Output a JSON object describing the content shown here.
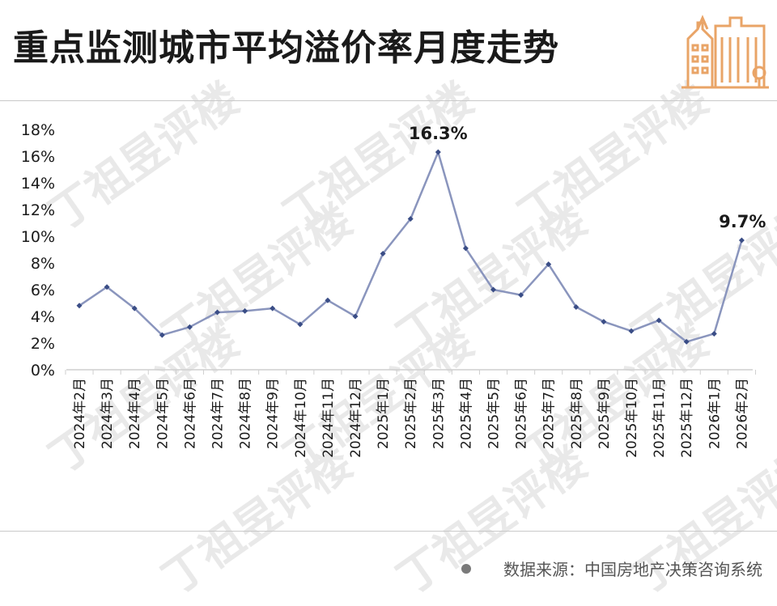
{
  "title": "重点监测城市平均溢价率月度走势",
  "source": "数据来源：中国房地产决策咨询系统",
  "watermark": "丁祖昱评楼",
  "colors": {
    "line": "#8a95bd",
    "marker": "#3a4d86",
    "text": "#1a1a1a",
    "logo": "#e9a467"
  },
  "chart_data": {
    "type": "line",
    "categories": [
      "2024年2月",
      "2024年3月",
      "2024年4月",
      "2024年5月",
      "2024年6月",
      "2024年7月",
      "2024年8月",
      "2024年9月",
      "2024年10月",
      "2024年11月",
      "2024年12月",
      "2025年1月",
      "2025年2月",
      "2025年3月",
      "2025年4月",
      "2025年5月",
      "2025年6月",
      "2025年7月",
      "2025年8月",
      "2025年9月",
      "2025年10月",
      "2025年11月",
      "2025年12月",
      "2026年1月",
      "2026年2月"
    ],
    "series": [
      {
        "values": [
          4.8,
          6.2,
          4.6,
          2.6,
          3.2,
          4.3,
          4.4,
          4.6,
          3.4,
          5.2,
          4.0,
          8.7,
          11.3,
          16.3,
          9.1,
          6.0,
          5.6,
          7.9,
          4.7,
          3.6,
          2.9,
          3.7,
          2.1,
          2.7,
          9.7
        ]
      }
    ],
    "ylim": [
      0,
      18
    ],
    "yticks": [
      "0%",
      "2%",
      "4%",
      "6%",
      "8%",
      "10%",
      "12%",
      "14%",
      "16%",
      "18%"
    ],
    "annotations": [
      {
        "category": "2025年3月",
        "label": "16.3%"
      },
      {
        "category": "2026年2月",
        "label": "9.7%"
      }
    ],
    "xlabel": "",
    "ylabel": "",
    "grid": false,
    "legend": false
  }
}
